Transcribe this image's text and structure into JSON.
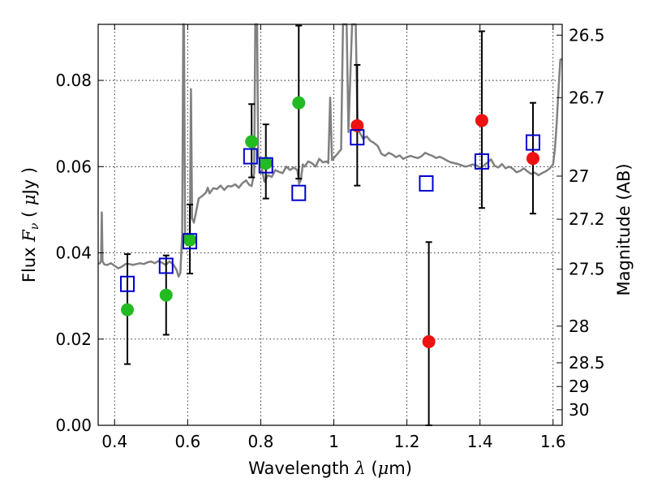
{
  "chart_data": {
    "type": "scatter",
    "xlabel": {
      "prefix": "Wavelength",
      "symbol": "λ",
      "unit_open": "(",
      "unit_mu": "μ",
      "unit_rest": "m)"
    },
    "ylabel": {
      "prefix": "Flux",
      "symbol": "F",
      "sub": "ν",
      "unit_open": "(",
      "unit_mu": "μ",
      "unit_rest": "Jy )"
    },
    "y2label": "Magnitude (AB)",
    "xlim": [
      0.355,
      1.625
    ],
    "ylim": [
      0.0,
      0.093
    ],
    "xticks": [
      0.4,
      0.6,
      0.8,
      1.0,
      1.2,
      1.4,
      1.6
    ],
    "xtick_labels": [
      "0.4",
      "0.6",
      "0.8",
      "1",
      "1.2",
      "1.4",
      "1.6"
    ],
    "yticks": [
      0.0,
      0.02,
      0.04,
      0.06,
      0.08
    ],
    "ytick_labels": [
      "0.00",
      "0.02",
      "0.04",
      "0.06",
      "0.08"
    ],
    "y2ticks": [
      {
        "flux": 0.0905,
        "label": "26.5"
      },
      {
        "flux": 0.076,
        "label": "26.7"
      },
      {
        "flux": 0.0578,
        "label": "27"
      },
      {
        "flux": 0.0478,
        "label": "27.2"
      },
      {
        "flux": 0.0362,
        "label": "27.5"
      },
      {
        "flux": 0.023,
        "label": "28"
      },
      {
        "flux": 0.0145,
        "label": "28.5"
      },
      {
        "flux": 0.009,
        "label": "29"
      },
      {
        "flux": 0.0036,
        "label": "30"
      }
    ],
    "grid": true,
    "series": [
      {
        "name": "green photometry",
        "color": "#22bb22",
        "marker": "circle",
        "points": [
          {
            "x": 0.435,
            "y": 0.0268,
            "err": [
              0.0142,
              0.0397
            ]
          },
          {
            "x": 0.541,
            "y": 0.0302,
            "err": [
              0.021,
              0.0394
            ]
          },
          {
            "x": 0.606,
            "y": 0.043,
            "err": [
              0.0352,
              0.0512
            ]
          },
          {
            "x": 0.775,
            "y": 0.0658,
            "err": [
              0.0575,
              0.0745
            ]
          },
          {
            "x": 0.814,
            "y": 0.0608,
            "err": [
              0.0526,
              0.0698
            ]
          },
          {
            "x": 0.904,
            "y": 0.0748,
            "err": [
              0.0572,
              0.0927
            ]
          }
        ]
      },
      {
        "name": "red photometry",
        "color": "#ee1111",
        "marker": "circle",
        "points": [
          {
            "x": 1.064,
            "y": 0.0695,
            "err": [
              0.0556,
              0.0836
            ]
          },
          {
            "x": 1.26,
            "y": 0.0194,
            "err": [
              0.0,
              0.0425
            ]
          },
          {
            "x": 1.405,
            "y": 0.0707,
            "err": [
              0.0504,
              0.0914
            ]
          },
          {
            "x": 1.545,
            "y": 0.0619,
            "err": [
              0.0491,
              0.0748
            ]
          }
        ]
      },
      {
        "name": "model photometry",
        "color": "#0000cc",
        "marker": "open-square",
        "points": [
          {
            "x": 0.435,
            "y": 0.0328
          },
          {
            "x": 0.541,
            "y": 0.037
          },
          {
            "x": 0.606,
            "y": 0.0427
          },
          {
            "x": 0.772,
            "y": 0.0624
          },
          {
            "x": 0.814,
            "y": 0.0603
          },
          {
            "x": 0.904,
            "y": 0.0539
          },
          {
            "x": 1.064,
            "y": 0.0668
          },
          {
            "x": 1.253,
            "y": 0.0561
          },
          {
            "x": 1.405,
            "y": 0.0612
          },
          {
            "x": 1.545,
            "y": 0.0656
          }
        ]
      }
    ],
    "model_spectrum": {
      "name": "SED model",
      "color": "#808080",
      "points": [
        [
          0.355,
          0.0375
        ],
        [
          0.36,
          0.0376
        ],
        [
          0.363,
          0.0383
        ],
        [
          0.365,
          0.0494
        ],
        [
          0.367,
          0.038
        ],
        [
          0.372,
          0.0373
        ],
        [
          0.38,
          0.0372
        ],
        [
          0.39,
          0.0376
        ],
        [
          0.4,
          0.037
        ],
        [
          0.41,
          0.0364
        ],
        [
          0.42,
          0.0368
        ],
        [
          0.43,
          0.0374
        ],
        [
          0.44,
          0.0374
        ],
        [
          0.45,
          0.0372
        ],
        [
          0.46,
          0.0374
        ],
        [
          0.47,
          0.0376
        ],
        [
          0.48,
          0.0374
        ],
        [
          0.49,
          0.0378
        ],
        [
          0.5,
          0.038
        ],
        [
          0.51,
          0.0376
        ],
        [
          0.52,
          0.0381
        ],
        [
          0.53,
          0.0377
        ],
        [
          0.54,
          0.0372
        ],
        [
          0.55,
          0.038
        ],
        [
          0.56,
          0.0374
        ],
        [
          0.57,
          0.036
        ],
        [
          0.575,
          0.0345
        ],
        [
          0.58,
          0.0353
        ],
        [
          0.585,
          0.0445
        ],
        [
          0.588,
          0.093
        ],
        [
          0.59,
          0.093
        ],
        [
          0.593,
          0.0426
        ],
        [
          0.597,
          0.0418
        ],
        [
          0.602,
          0.0433
        ],
        [
          0.606,
          0.0445
        ],
        [
          0.609,
          0.078
        ],
        [
          0.612,
          0.048
        ],
        [
          0.617,
          0.047
        ],
        [
          0.623,
          0.0495
        ],
        [
          0.63,
          0.0526
        ],
        [
          0.64,
          0.0532
        ],
        [
          0.65,
          0.054
        ],
        [
          0.655,
          0.0551
        ],
        [
          0.66,
          0.0538
        ],
        [
          0.67,
          0.055
        ],
        [
          0.68,
          0.0548
        ],
        [
          0.69,
          0.0556
        ],
        [
          0.7,
          0.0546
        ],
        [
          0.71,
          0.0555
        ],
        [
          0.72,
          0.0554
        ],
        [
          0.73,
          0.0559
        ],
        [
          0.74,
          0.0551
        ],
        [
          0.75,
          0.0562
        ],
        [
          0.76,
          0.0568
        ],
        [
          0.768,
          0.0558
        ],
        [
          0.775,
          0.0555
        ],
        [
          0.782,
          0.0585
        ],
        [
          0.785,
          0.093
        ],
        [
          0.79,
          0.093
        ],
        [
          0.793,
          0.0625
        ],
        [
          0.8,
          0.0608
        ],
        [
          0.81,
          0.0565
        ],
        [
          0.82,
          0.058
        ],
        [
          0.83,
          0.0576
        ],
        [
          0.84,
          0.0592
        ],
        [
          0.85,
          0.0588
        ],
        [
          0.86,
          0.0585
        ],
        [
          0.87,
          0.06
        ],
        [
          0.88,
          0.0592
        ],
        [
          0.89,
          0.0598
        ],
        [
          0.9,
          0.0592
        ],
        [
          0.905,
          0.056
        ],
        [
          0.91,
          0.057
        ],
        [
          0.915,
          0.0605
        ],
        [
          0.92,
          0.06
        ],
        [
          0.93,
          0.0612
        ],
        [
          0.94,
          0.0608
        ],
        [
          0.95,
          0.06
        ],
        [
          0.96,
          0.0618
        ],
        [
          0.97,
          0.061
        ],
        [
          0.98,
          0.0612
        ],
        [
          0.985,
          0.0608
        ],
        [
          0.99,
          0.076
        ],
        [
          0.995,
          0.0615
        ],
        [
          1.0,
          0.062
        ],
        [
          1.01,
          0.063
        ],
        [
          1.02,
          0.064
        ],
        [
          1.025,
          0.093
        ],
        [
          1.035,
          0.093
        ],
        [
          1.04,
          0.068
        ],
        [
          1.05,
          0.093
        ],
        [
          1.06,
          0.093
        ],
        [
          1.065,
          0.0688
        ],
        [
          1.07,
          0.068
        ],
        [
          1.08,
          0.0665
        ],
        [
          1.09,
          0.067
        ],
        [
          1.1,
          0.066
        ],
        [
          1.11,
          0.0655
        ],
        [
          1.12,
          0.0648
        ],
        [
          1.13,
          0.063
        ],
        [
          1.14,
          0.0625
        ],
        [
          1.15,
          0.0632
        ],
        [
          1.16,
          0.0628
        ],
        [
          1.17,
          0.0622
        ],
        [
          1.18,
          0.0626
        ],
        [
          1.19,
          0.0618
        ],
        [
          1.2,
          0.0622
        ],
        [
          1.21,
          0.0625
        ],
        [
          1.22,
          0.0622
        ],
        [
          1.23,
          0.062
        ],
        [
          1.24,
          0.0624
        ],
        [
          1.25,
          0.0632
        ],
        [
          1.26,
          0.0628
        ],
        [
          1.27,
          0.0625
        ],
        [
          1.28,
          0.062
        ],
        [
          1.29,
          0.0623
        ],
        [
          1.3,
          0.0619
        ],
        [
          1.31,
          0.0614
        ],
        [
          1.32,
          0.061
        ],
        [
          1.33,
          0.0608
        ],
        [
          1.34,
          0.0606
        ],
        [
          1.35,
          0.0603
        ],
        [
          1.36,
          0.06
        ],
        [
          1.37,
          0.0602
        ],
        [
          1.38,
          0.0605
        ],
        [
          1.39,
          0.0603
        ],
        [
          1.4,
          0.0598
        ],
        [
          1.41,
          0.0602
        ],
        [
          1.42,
          0.0609
        ],
        [
          1.43,
          0.0617
        ],
        [
          1.44,
          0.0602
        ],
        [
          1.45,
          0.0598
        ],
        [
          1.46,
          0.0606
        ],
        [
          1.47,
          0.0596
        ],
        [
          1.48,
          0.06
        ],
        [
          1.49,
          0.0595
        ],
        [
          1.5,
          0.0587
        ],
        [
          1.51,
          0.059
        ],
        [
          1.52,
          0.0596
        ],
        [
          1.53,
          0.0589
        ],
        [
          1.54,
          0.0583
        ],
        [
          1.55,
          0.0586
        ],
        [
          1.56,
          0.058
        ],
        [
          1.57,
          0.0585
        ],
        [
          1.58,
          0.0589
        ],
        [
          1.59,
          0.0595
        ],
        [
          1.6,
          0.0605
        ],
        [
          1.605,
          0.064
        ],
        [
          1.61,
          0.07
        ],
        [
          1.615,
          0.078
        ],
        [
          1.62,
          0.0848
        ],
        [
          1.625,
          0.085
        ]
      ]
    }
  }
}
